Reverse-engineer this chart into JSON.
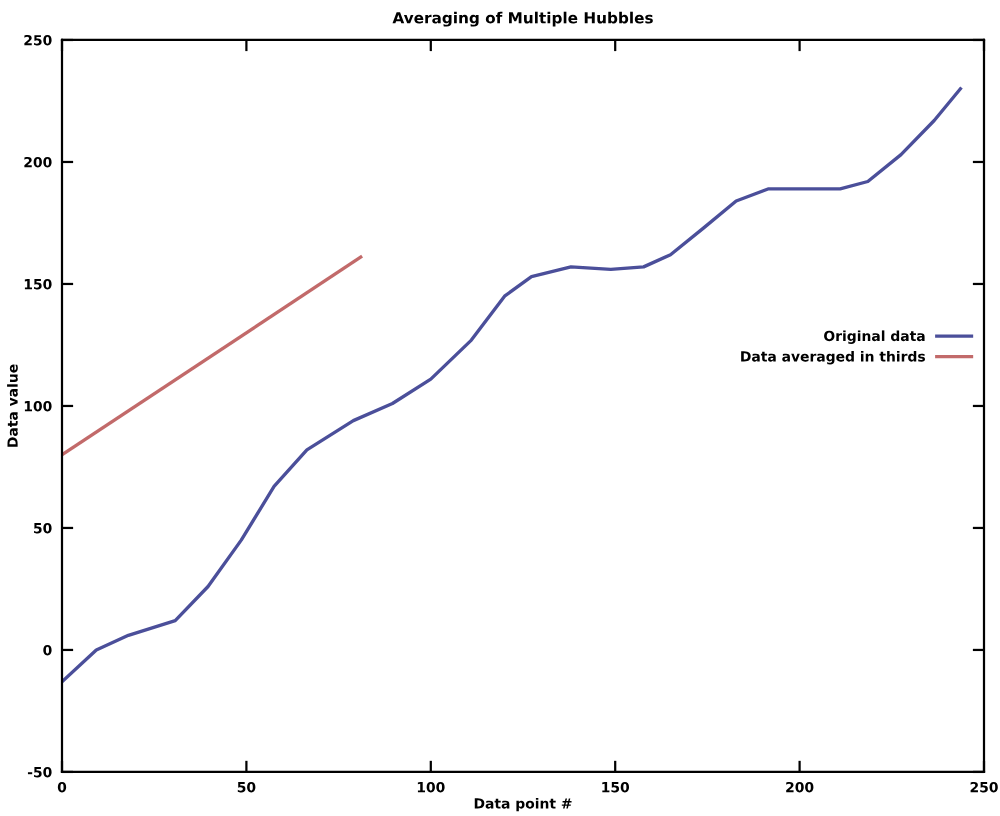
{
  "chart_data": {
    "type": "line",
    "title": "Averaging of Multiple Hubbles",
    "xlabel": "Data point #",
    "ylabel": "Data value",
    "xlim": [
      0,
      250
    ],
    "ylim": [
      -50,
      250
    ],
    "xticks": [
      0,
      50,
      100,
      150,
      200,
      250
    ],
    "yticks": [
      -50,
      0,
      50,
      100,
      150,
      200,
      250
    ],
    "grid": false,
    "legend": "right",
    "marker": "none",
    "line_style": "solid",
    "series": [
      {
        "name": "Original data",
        "color": "#4b4f9a",
        "x": [
          0,
          9.3,
          18,
          30.7,
          39.6,
          48.6,
          57.5,
          66.4,
          79,
          89.6,
          100,
          111,
          120,
          127.3,
          138,
          148.8,
          157.7,
          165,
          174,
          182.8,
          191.6,
          200.6,
          211,
          218.5,
          227.5,
          236.5,
          243.6
        ],
        "values": [
          -13,
          0,
          6,
          12,
          26,
          45,
          67,
          82,
          94,
          101,
          111,
          127,
          145,
          153,
          157,
          156,
          157,
          162,
          173,
          184,
          189,
          189,
          189,
          192,
          203,
          217,
          230
        ]
      },
      {
        "name": "Data averaged in thirds",
        "color": "#c26a6a",
        "x": [
          0,
          81
        ],
        "values": [
          80,
          161
        ]
      }
    ]
  }
}
